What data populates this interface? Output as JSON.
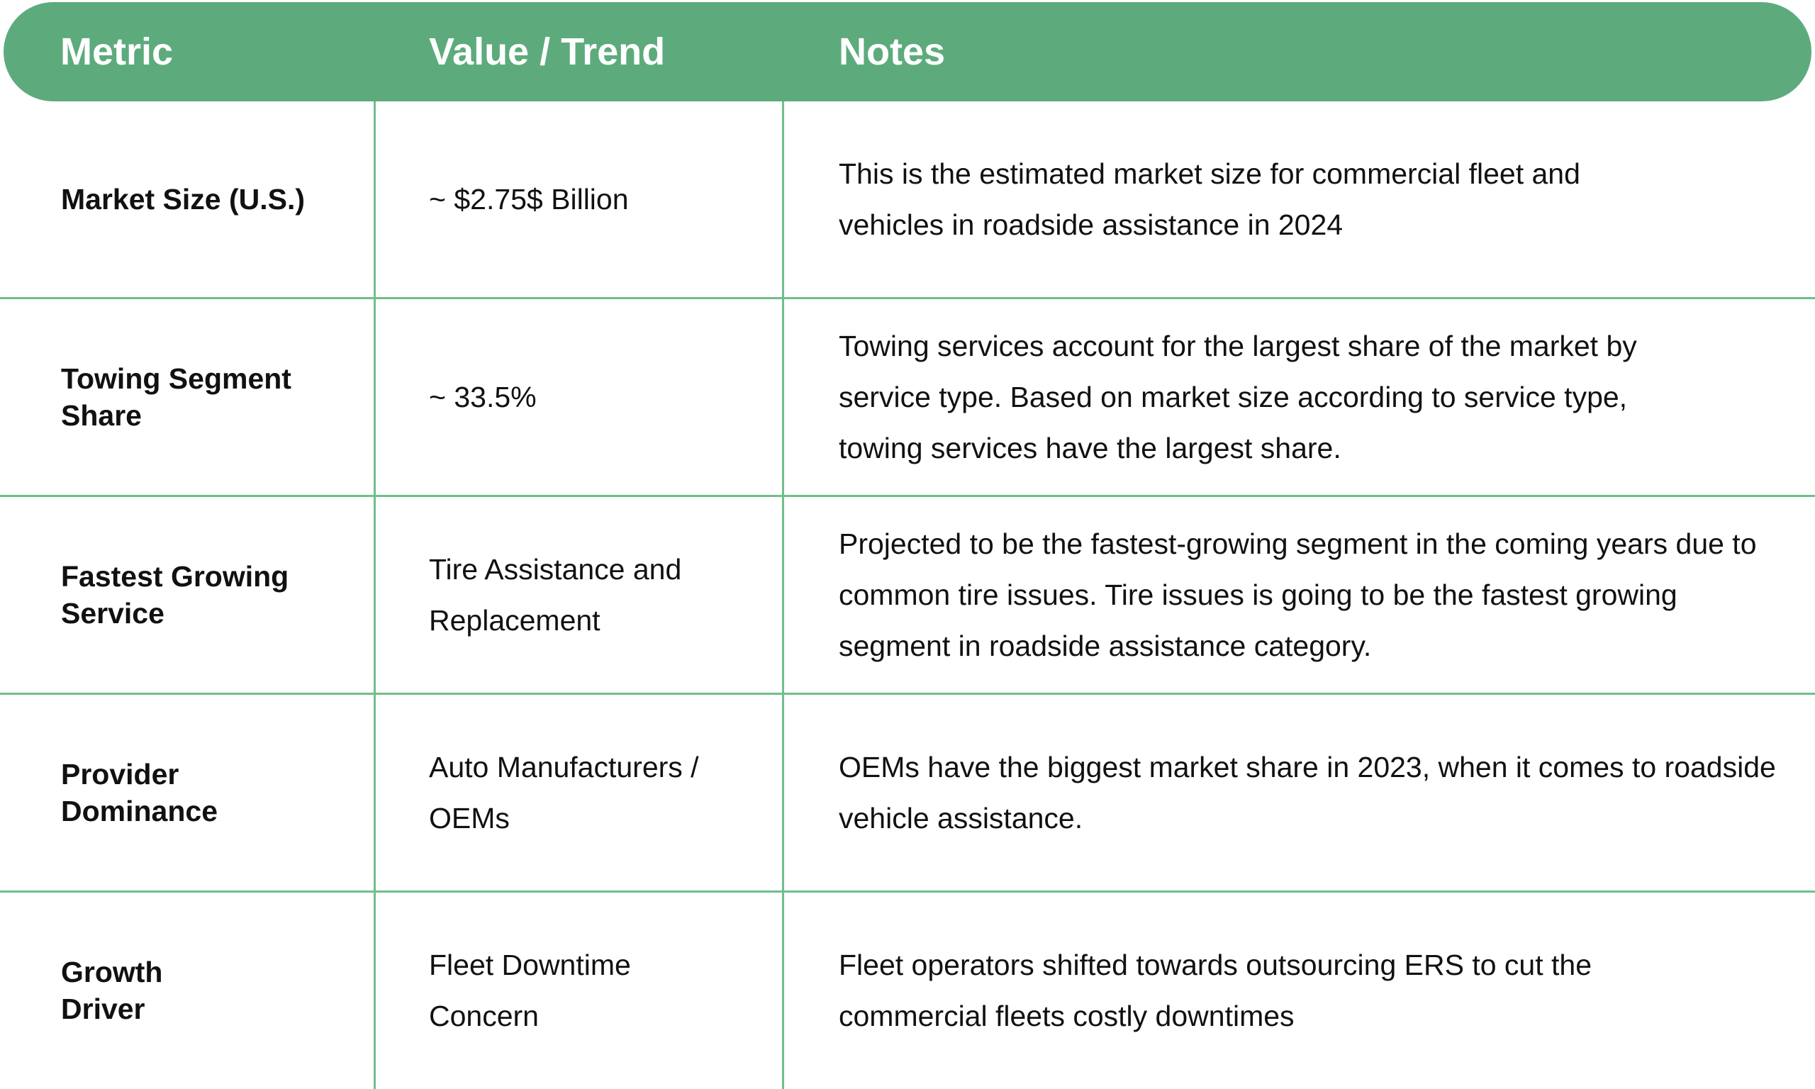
{
  "header": {
    "metric": "Metric",
    "value": "Value / Trend",
    "notes": "Notes"
  },
  "rows": [
    {
      "metric": "Market Size (U.S.)",
      "value": "~ $2.75$ Billion",
      "notes": "This is the estimated market size for commercial fleet and vehicles in roadside assistance in 2024"
    },
    {
      "metric": "Towing Segment Share",
      "value": "~ 33.5%",
      "notes": "Towing services account for the largest share of the market by service type. Based on market size according to service type, towing services have the largest share."
    },
    {
      "metric": "Fastest Growing Service",
      "value": "Tire Assistance and Replacement",
      "notes": "Projected to be the fastest-growing segment in the coming years due to common tire issues. Tire issues is going to be the fastest growing segment in roadside assistance category."
    },
    {
      "metric": "Provider Dominance",
      "value": "Auto Manufacturers / OEMs",
      "notes": "OEMs have the biggest market share in 2023, when it comes to roadside vehicle assistance."
    },
    {
      "metric": "Growth Driver",
      "value": "Fleet Downtime Concern",
      "notes": "Fleet operators shifted towards outsourcing ERS to cut the commercial fleets costly downtimes"
    }
  ]
}
